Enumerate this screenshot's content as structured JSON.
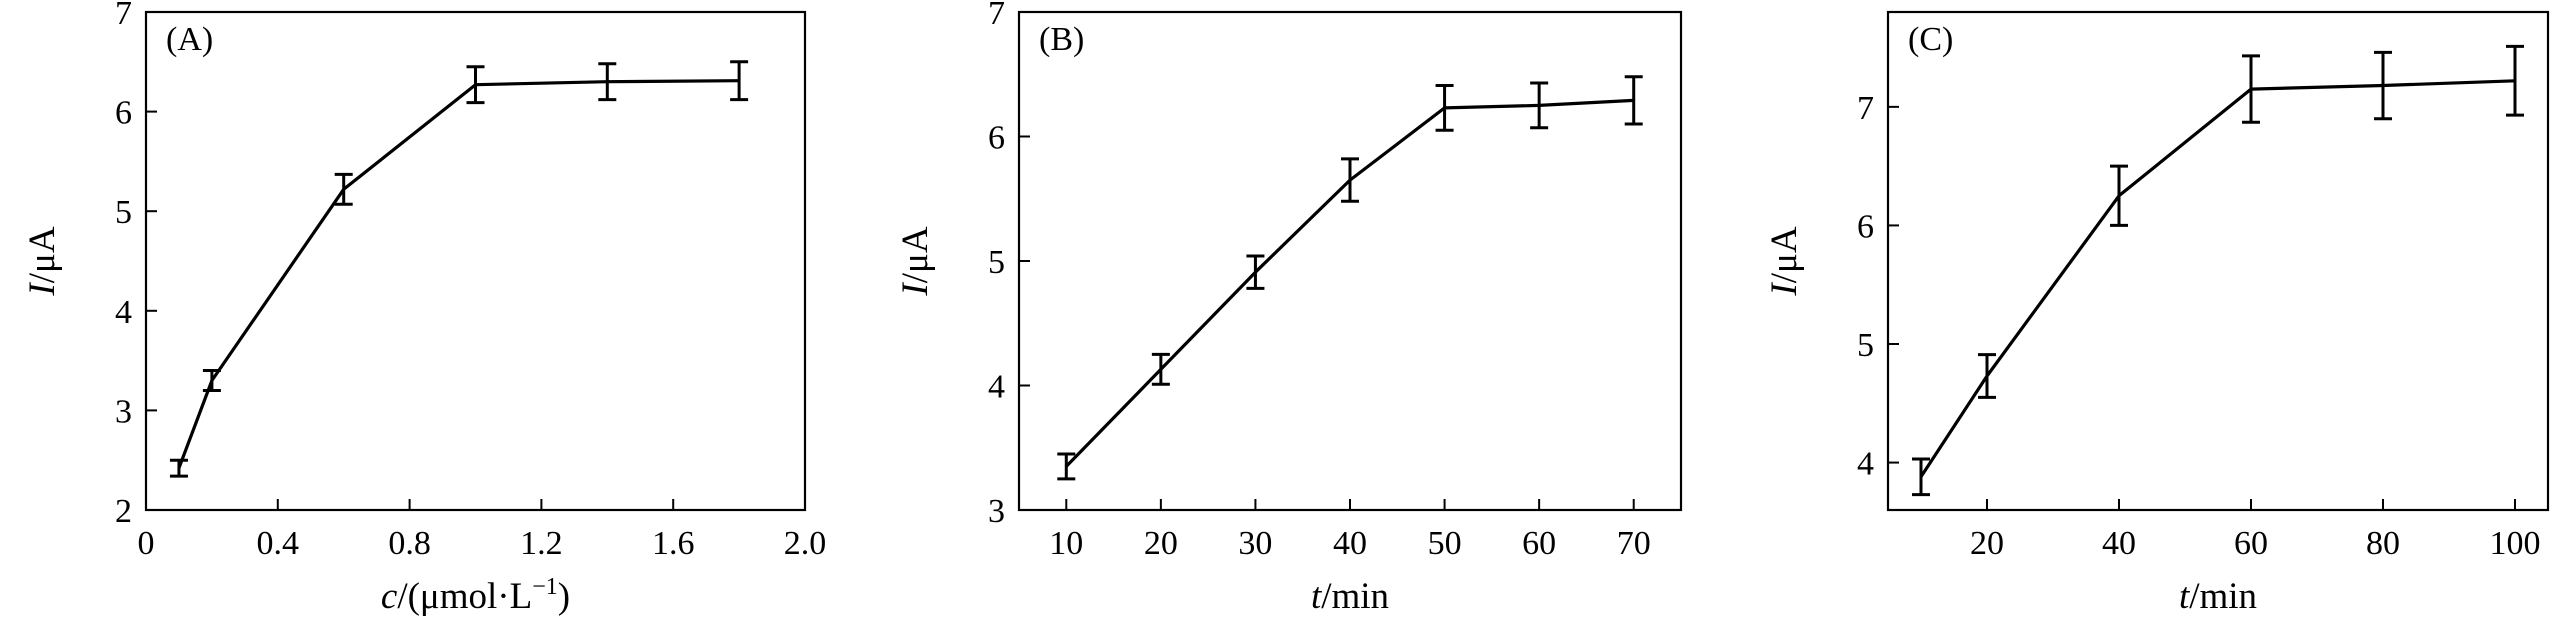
{
  "chart_data": [
    {
      "type": "line",
      "panel_label": "(A)",
      "xlabel": {
        "var": "c",
        "rest": "/(μmol·L",
        "sup": "−1",
        "close": ")"
      },
      "ylabel": {
        "var": "I",
        "rest": "/μA"
      },
      "xlim": [
        0,
        2.0
      ],
      "ylim": [
        2,
        7
      ],
      "xticks": [
        "0",
        "0.4",
        "0.8",
        "1.2",
        "1.6",
        "2.0"
      ],
      "yticks": [
        "2",
        "3",
        "4",
        "5",
        "6",
        "7"
      ],
      "x": [
        0.1,
        0.2,
        0.6,
        1.0,
        1.4,
        1.8
      ],
      "y": [
        2.42,
        3.3,
        5.22,
        6.27,
        6.3,
        6.31
      ],
      "yerr": [
        0.08,
        0.1,
        0.15,
        0.18,
        0.18,
        0.19
      ],
      "grid": false
    },
    {
      "type": "line",
      "panel_label": "(B)",
      "xlabel": {
        "var": "t",
        "rest": "/min"
      },
      "ylabel": {
        "var": "I",
        "rest": "/μA"
      },
      "xlim": [
        5,
        75
      ],
      "ylim": [
        3,
        7
      ],
      "xticks": [
        "10",
        "20",
        "30",
        "40",
        "50",
        "60",
        "70"
      ],
      "yticks": [
        "3",
        "4",
        "5",
        "6",
        "7"
      ],
      "x": [
        10,
        20,
        30,
        40,
        50,
        60,
        70
      ],
      "y": [
        3.35,
        4.13,
        4.91,
        5.65,
        6.23,
        6.25,
        6.29
      ],
      "yerr": [
        0.1,
        0.12,
        0.13,
        0.17,
        0.18,
        0.18,
        0.19
      ],
      "grid": false
    },
    {
      "type": "line",
      "panel_label": "(C)",
      "xlabel": {
        "var": "t",
        "rest": "/min"
      },
      "ylabel": {
        "var": "I",
        "rest": "/μA"
      },
      "xlim": [
        5,
        105
      ],
      "ylim": [
        3.6,
        7.8
      ],
      "xticks": [
        "20",
        "40",
        "60",
        "80",
        "100"
      ],
      "yticks": [
        "4",
        "5",
        "6",
        "7"
      ],
      "x": [
        10,
        20,
        40,
        60,
        80,
        100
      ],
      "y": [
        3.88,
        4.73,
        6.25,
        7.15,
        7.18,
        7.22
      ],
      "yerr": [
        0.15,
        0.18,
        0.25,
        0.28,
        0.28,
        0.29
      ],
      "grid": false
    }
  ]
}
